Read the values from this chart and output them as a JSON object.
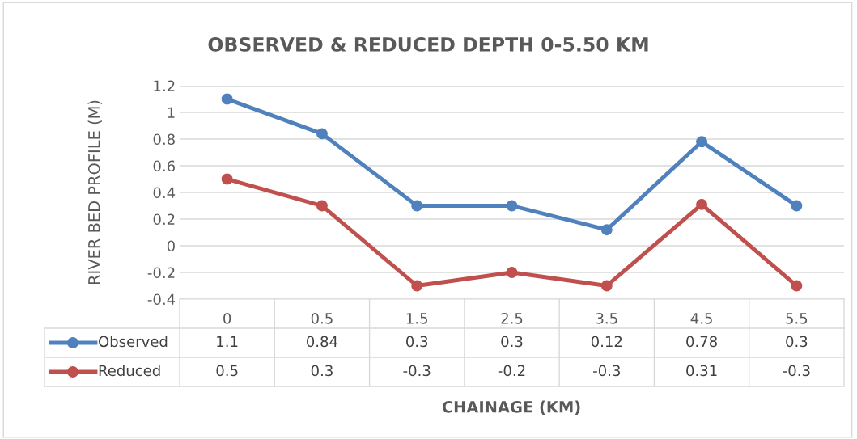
{
  "chart_data": {
    "type": "line",
    "title": "OBSERVED & REDUCED DEPTH 0-5.50 KM",
    "xlabel": "CHAINAGE (KM)",
    "ylabel": "RIVER BED PROFILE (M)",
    "categories": [
      "0",
      "0.5",
      "1.5",
      "2.5",
      "3.5",
      "4.5",
      "5.5"
    ],
    "series": [
      {
        "name": "Observed",
        "color": "#4f81bd",
        "values": [
          1.1,
          0.84,
          0.3,
          0.3,
          0.12,
          0.78,
          0.3
        ]
      },
      {
        "name": "Reduced",
        "color": "#c0504d",
        "values": [
          0.5,
          0.3,
          -0.3,
          -0.2,
          -0.3,
          0.31,
          -0.3
        ]
      }
    ],
    "ylim": [
      -0.4,
      1.2
    ],
    "yticks": [
      -0.4,
      -0.2,
      0,
      0.2,
      0.4,
      0.6,
      0.8,
      1,
      1.2
    ],
    "grid": "y",
    "marker": "circle",
    "line_style": "solid",
    "legend": "bottom",
    "data_labels": true
  }
}
